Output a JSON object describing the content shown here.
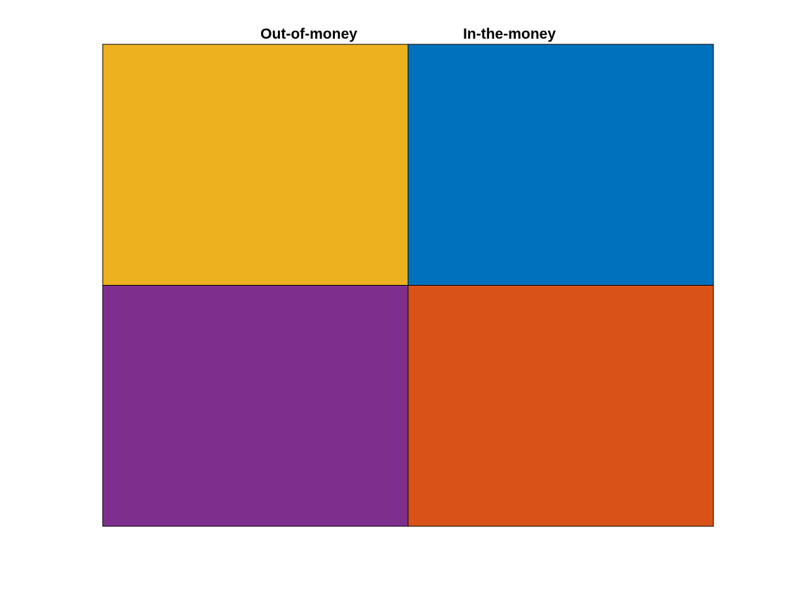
{
  "chart_data": {
    "type": "heatmap",
    "title": "",
    "xlabel": "",
    "ylabel": "",
    "columns": [
      "Out-of-money",
      "In-the-money"
    ],
    "rows": 2,
    "grid": false,
    "cells": [
      {
        "row": 1,
        "col": 1,
        "color": "#EDB120"
      },
      {
        "row": 1,
        "col": 2,
        "color": "#0072BD"
      },
      {
        "row": 2,
        "col": 1,
        "color": "#7E2F8E"
      },
      {
        "row": 2,
        "col": 2,
        "color": "#D95319"
      }
    ]
  }
}
